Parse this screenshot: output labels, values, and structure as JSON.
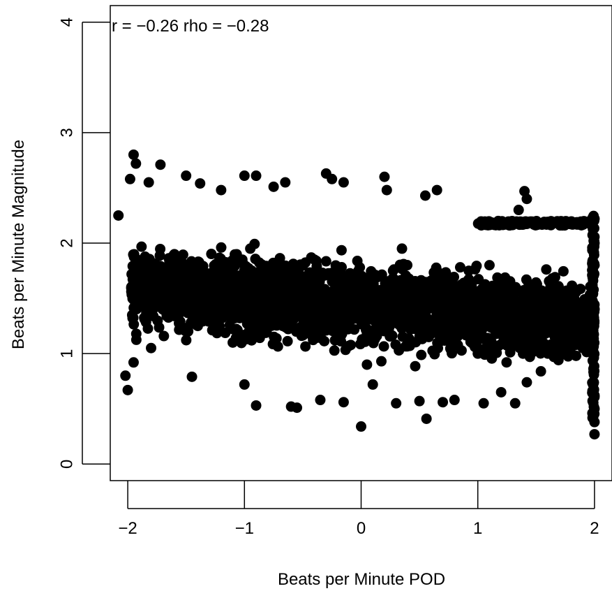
{
  "chart_data": {
    "type": "scatter",
    "title": "",
    "xlabel": "Beats per Minute POD",
    "ylabel": "Beats per Minute Magnitude",
    "annotation": "r = −0.26 rho = −0.28",
    "xlim": [
      -2.15,
      2.15
    ],
    "ylim": [
      -0.15,
      4.15
    ],
    "xticks": [
      -2,
      -1,
      0,
      1,
      2
    ],
    "xtick_labels": [
      "−2",
      "−1",
      "0",
      "1",
      "2"
    ],
    "yticks": [
      0,
      1,
      2,
      3,
      4
    ],
    "ytick_labels": [
      "0",
      "1",
      "2",
      "3",
      "4"
    ],
    "grid": false,
    "marker_color": "#000000",
    "series": [
      {
        "points_sampled": [
          [
            -2.08,
            2.25
          ],
          [
            -1.95,
            2.8
          ],
          [
            -1.93,
            2.72
          ],
          [
            -1.98,
            2.58
          ],
          [
            -1.82,
            2.55
          ],
          [
            -1.72,
            2.71
          ],
          [
            -1.5,
            2.61
          ],
          [
            -1.38,
            2.54
          ],
          [
            -1.2,
            2.48
          ],
          [
            -1.0,
            2.61
          ],
          [
            -0.9,
            2.61
          ],
          [
            -0.75,
            2.51
          ],
          [
            -0.65,
            2.55
          ],
          [
            -0.3,
            2.63
          ],
          [
            -0.25,
            2.58
          ],
          [
            -0.15,
            2.55
          ],
          [
            0.2,
            2.6
          ],
          [
            0.22,
            2.48
          ],
          [
            0.55,
            2.43
          ],
          [
            0.65,
            2.48
          ],
          [
            1.35,
            2.3
          ],
          [
            1.4,
            2.47
          ],
          [
            1.42,
            2.4
          ],
          [
            1.8,
            2.18
          ],
          [
            1.95,
            2.18
          ],
          [
            -2.0,
            0.67
          ],
          [
            -2.02,
            0.8
          ],
          [
            -1.95,
            0.92
          ],
          [
            -1.45,
            0.79
          ],
          [
            -1.0,
            0.72
          ],
          [
            -0.9,
            0.53
          ],
          [
            -0.6,
            0.52
          ],
          [
            -0.55,
            0.51
          ],
          [
            -0.35,
            0.58
          ],
          [
            -0.15,
            0.56
          ],
          [
            0.0,
            0.34
          ],
          [
            0.1,
            0.72
          ],
          [
            0.3,
            0.55
          ],
          [
            0.5,
            0.57
          ],
          [
            0.56,
            0.41
          ],
          [
            0.7,
            0.56
          ],
          [
            0.8,
            0.58
          ],
          [
            1.05,
            0.55
          ],
          [
            1.2,
            0.65
          ],
          [
            1.32,
            0.55
          ],
          [
            1.42,
            0.74
          ],
          [
            2.0,
            0.27
          ],
          [
            2.0,
            0.38
          ],
          [
            2.0,
            0.5
          ],
          [
            2.0,
            0.62
          ],
          [
            2.0,
            2.22
          ],
          [
            2.0,
            2.0
          ],
          [
            2.0,
            1.8
          ],
          [
            -1.8,
            1.05
          ],
          [
            -1.6,
            1.9
          ],
          [
            -1.4,
            1.25
          ],
          [
            -1.2,
            1.7
          ],
          [
            -1.1,
            1.1
          ],
          [
            -0.8,
            1.55
          ],
          [
            -0.6,
            1.3
          ],
          [
            -0.4,
            1.85
          ],
          [
            -0.2,
            1.2
          ],
          [
            0.0,
            1.6
          ],
          [
            0.15,
            1.35
          ],
          [
            0.35,
            1.95
          ],
          [
            0.5,
            1.15
          ],
          [
            0.7,
            1.7
          ],
          [
            0.9,
            1.3
          ],
          [
            1.1,
            1.8
          ],
          [
            1.3,
            1.25
          ],
          [
            1.5,
            1.55
          ],
          [
            1.7,
            1.2
          ],
          [
            1.85,
            1.4
          ],
          [
            1.9,
            1.05
          ],
          [
            -1.7,
            1.4
          ],
          [
            -0.95,
            1.95
          ],
          [
            0.05,
            0.9
          ],
          [
            0.45,
            1.45
          ],
          [
            1.0,
            1.0
          ],
          [
            1.6,
            1.0
          ]
        ]
      }
    ]
  }
}
